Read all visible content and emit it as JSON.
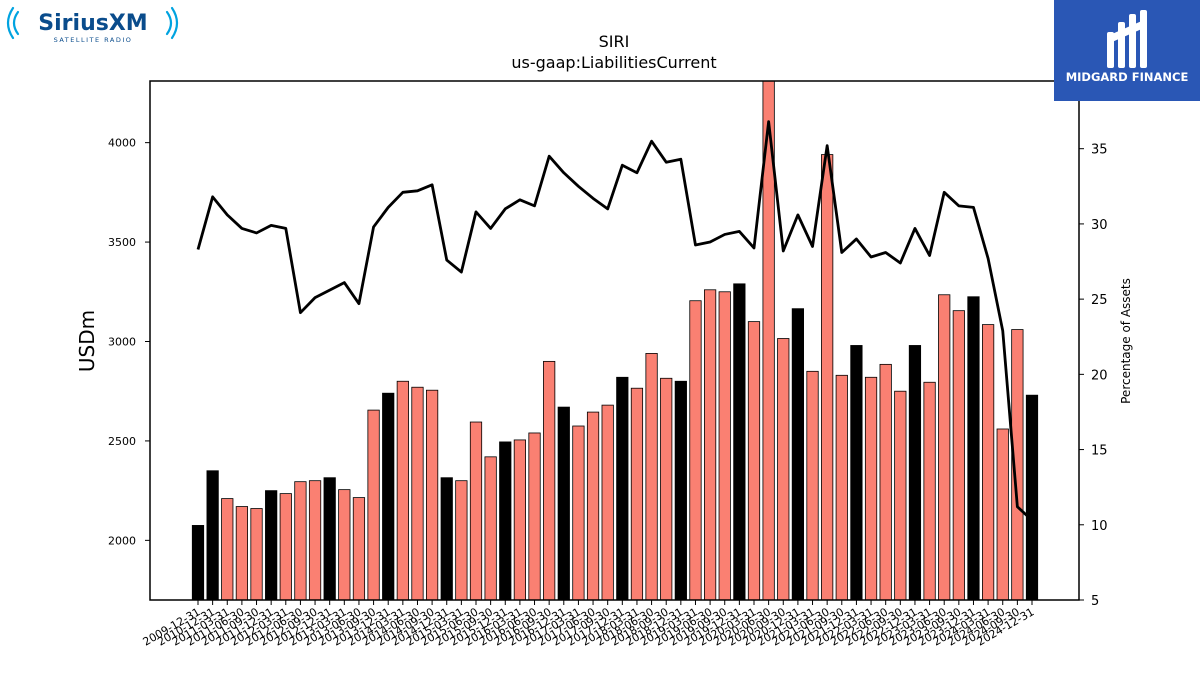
{
  "logos": {
    "left": {
      "name": "SiriusXM",
      "sub": "SATELLITE RADIO"
    },
    "right": {
      "name": "MIDGARD FINANCE"
    }
  },
  "colors": {
    "bar_primary": "#fa8072",
    "bar_alt": "#000000",
    "line": "#000000",
    "siriusxm_blue": "#0a4c8c",
    "siriusxm_cyan": "#00a3e0",
    "midgard_bg": "#2a57b5"
  },
  "chart_data": {
    "type": "bar",
    "title": "SIRI",
    "subtitle": "us-gaap:LiabilitiesCurrent",
    "ylabel": "USDm",
    "ylabel_right": "Percentage of Assets",
    "ylim": [
      1700,
      4310
    ],
    "yticks": [
      2000,
      2500,
      3000,
      3500,
      4000
    ],
    "ylim_right": [
      5,
      39.5
    ],
    "yticks_right": [
      5,
      10,
      15,
      20,
      25,
      30,
      35
    ],
    "grid": false,
    "categories": [
      "2009-12-31",
      "2010-12-31",
      "2011-03-31",
      "2011-06-30",
      "2011-09-30",
      "2011-12-31",
      "2012-03-31",
      "2012-06-30",
      "2012-09-30",
      "2012-12-31",
      "2013-03-31",
      "2013-06-30",
      "2013-09-30",
      "2013-12-31",
      "2014-03-31",
      "2014-06-30",
      "2014-09-30",
      "2014-12-31",
      "2015-03-31",
      "2015-06-30",
      "2015-09-30",
      "2015-12-31",
      "2016-03-31",
      "2016-06-30",
      "2016-09-30",
      "2016-12-31",
      "2017-03-31",
      "2017-06-30",
      "2017-09-30",
      "2017-12-31",
      "2018-03-31",
      "2018-06-30",
      "2018-09-30",
      "2018-12-31",
      "2019-03-31",
      "2019-06-30",
      "2019-09-30",
      "2019-12-31",
      "2020-03-31",
      "2020-06-30",
      "2020-09-30",
      "2020-12-31",
      "2021-03-31",
      "2021-06-30",
      "2021-09-30",
      "2021-12-31",
      "2022-03-31",
      "2022-06-30",
      "2022-09-30",
      "2022-12-31",
      "2023-03-31",
      "2023-06-30",
      "2023-09-30",
      "2023-12-31",
      "2024-03-31",
      "2024-06-30",
      "2024-09-30",
      "2024-12-31"
    ],
    "series": [
      {
        "type": "bar",
        "axis": "left",
        "values": [
          2075,
          2350,
          2210,
          2170,
          2160,
          2250,
          2235,
          2295,
          2300,
          2315,
          2255,
          2215,
          2655,
          2740,
          2800,
          2770,
          2755,
          2315,
          2300,
          2595,
          2420,
          2495,
          2505,
          2540,
          2900,
          2670,
          2575,
          2645,
          2680,
          2820,
          2765,
          2940,
          2815,
          2800,
          3205,
          3260,
          3250,
          3290,
          3100,
          4320,
          3015,
          3165,
          2850,
          3940,
          2830,
          2980,
          2820,
          2885,
          2750,
          2980,
          2795,
          3235,
          3155,
          3225,
          3085,
          2560,
          3060,
          2730
        ],
        "highlight": [
          true,
          true,
          false,
          false,
          false,
          true,
          false,
          false,
          false,
          true,
          false,
          false,
          false,
          true,
          false,
          false,
          false,
          true,
          false,
          false,
          false,
          true,
          false,
          false,
          false,
          true,
          false,
          false,
          false,
          true,
          false,
          false,
          false,
          true,
          false,
          false,
          false,
          true,
          false,
          false,
          false,
          true,
          false,
          false,
          false,
          true,
          false,
          false,
          false,
          true,
          false,
          false,
          false,
          true,
          false,
          false,
          false,
          true
        ]
      },
      {
        "type": "line",
        "axis": "right",
        "values": [
          28.3,
          31.8,
          30.6,
          29.7,
          29.4,
          29.9,
          29.7,
          24.1,
          25.1,
          25.6,
          26.1,
          24.7,
          29.8,
          31.1,
          32.1,
          32.2,
          32.6,
          27.6,
          26.8,
          30.8,
          29.7,
          31.0,
          31.6,
          31.2,
          34.5,
          33.4,
          32.5,
          31.7,
          31.0,
          33.9,
          33.4,
          35.5,
          34.1,
          34.3,
          28.6,
          28.8,
          29.3,
          29.5,
          28.4,
          36.8,
          28.2,
          30.6,
          28.5,
          35.2,
          28.1,
          29.0,
          27.8,
          28.1,
          27.4,
          29.7,
          27.9,
          32.1,
          31.2,
          31.1,
          27.7,
          22.9,
          11.2,
          10.3
        ]
      }
    ]
  }
}
